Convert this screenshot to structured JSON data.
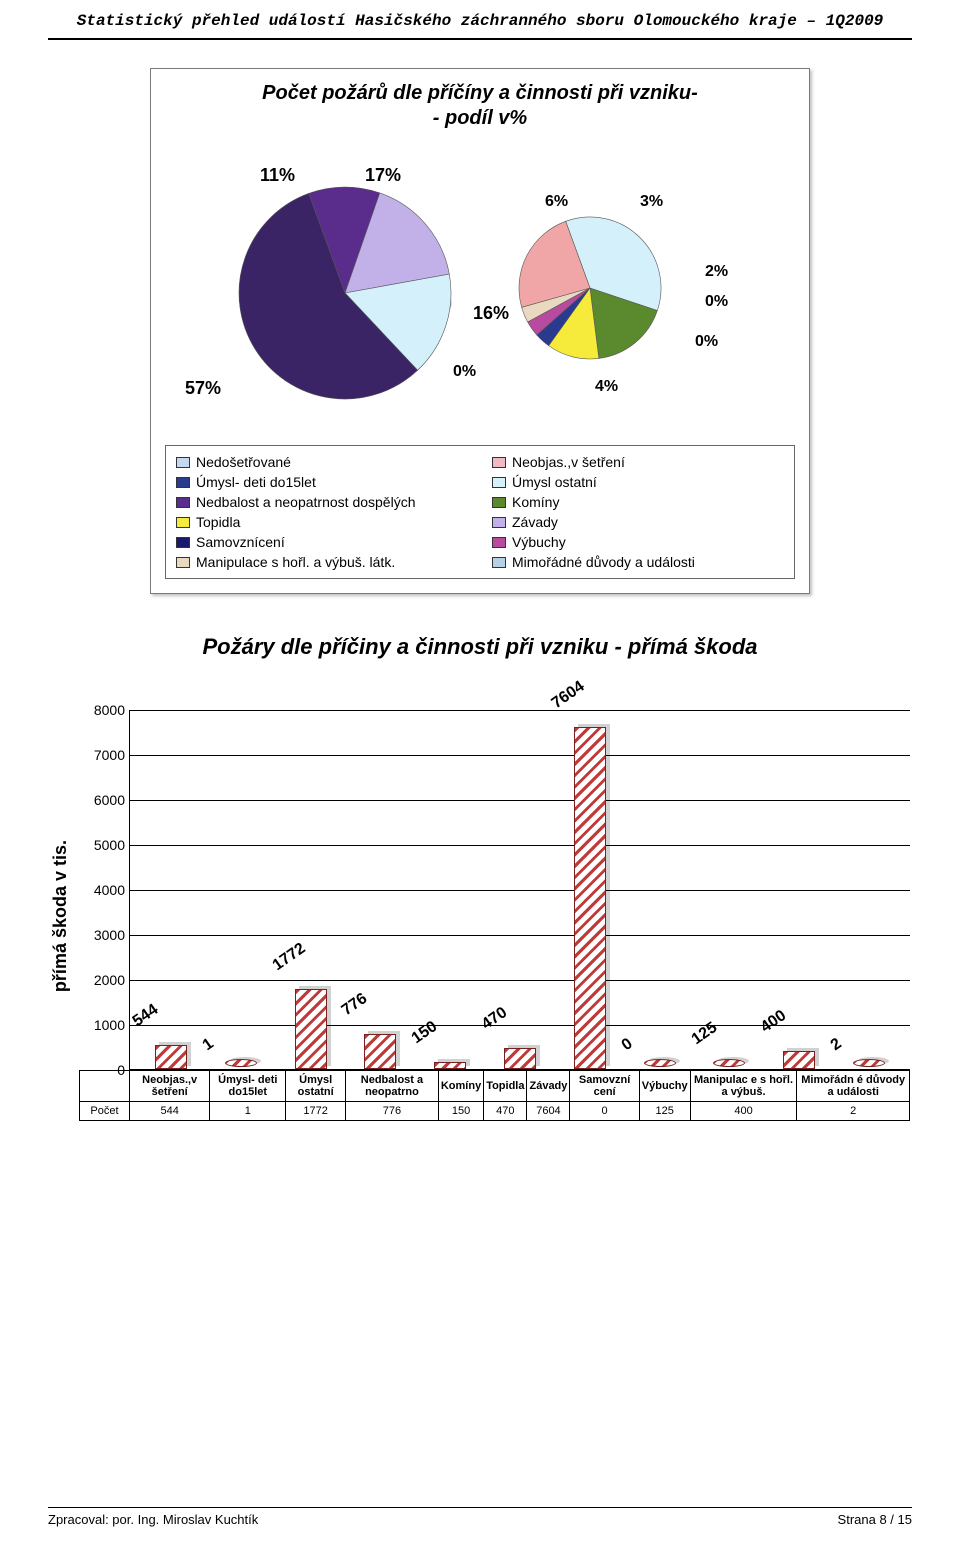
{
  "doc": {
    "title": "Statistický přehled událostí Hasičského záchranného sboru Olomouckého kraje – 1Q2009"
  },
  "pie_chart": {
    "type": "pie",
    "title_line1": "Počet požárů dle příčíny a činnosti při vzniku-",
    "title_line2": "- podíl v%",
    "background_color": "#ffffff",
    "main_pie": {
      "slices": [
        {
          "label": "11%",
          "value": 11,
          "color": "#5a2d8c"
        },
        {
          "label": "17%",
          "value": 17,
          "color": "#c2b0e8"
        },
        {
          "label": "16%",
          "value": 16,
          "color": "#d4f0fb"
        },
        {
          "label": "57%",
          "value": 57,
          "color": "#3a2466"
        }
      ]
    },
    "detail_pie": {
      "slices": [
        {
          "label": "6%",
          "value": 6,
          "color": "#d4f0fb"
        },
        {
          "label": "3%",
          "value": 3,
          "color": "#5b8a2e"
        },
        {
          "label": "2%",
          "value": 2,
          "color": "#f6ea3a"
        },
        {
          "label": "0%",
          "value": 0.6,
          "color": "#2a3a8e"
        },
        {
          "label": "0%",
          "value": 0.6,
          "color": "#b84aa0"
        },
        {
          "label": "0%",
          "value": 0.6,
          "color": "#e8d9c0"
        },
        {
          "label": "4%",
          "value": 4,
          "color": "#f0a6a6"
        }
      ]
    },
    "legend": [
      {
        "label": "Nedošetřované",
        "color": "#c4d8f0"
      },
      {
        "label": "Neobjas.,v šetření",
        "color": "#f2b8c4"
      },
      {
        "label": "Úmysl- deti do15let",
        "color": "#2a3a8e"
      },
      {
        "label": "Úmysl ostatní",
        "color": "#d4f0fb"
      },
      {
        "label": "Nedbalost a neopatrnost dospělých",
        "color": "#5a2d8c"
      },
      {
        "label": "Komíny",
        "color": "#5b8a2e"
      },
      {
        "label": "Topidla",
        "color": "#f6ea3a"
      },
      {
        "label": "Závady",
        "color": "#c2b0e8"
      },
      {
        "label": "Samovznícení",
        "color": "#1a1a6a"
      },
      {
        "label": "Výbuchy",
        "color": "#b84aa0"
      },
      {
        "label": "Manipulace s hořl. a výbuš. látk.",
        "color": "#e8d9c0"
      },
      {
        "label": "Mimořádné důvody a události",
        "color": "#b6d0e8"
      }
    ]
  },
  "bar_chart": {
    "type": "bar",
    "title": "Požáry dle příčiny a činnosti při vzniku - přímá škoda",
    "ylabel": "přímá škoda v tis.",
    "ylim": [
      0,
      8000
    ],
    "ytick_step": 1000,
    "yticks": [
      0,
      1000,
      2000,
      3000,
      4000,
      5000,
      6000,
      7000,
      8000
    ],
    "grid_color": "#000000",
    "background_color": "#ffffff",
    "bar_fill": "#ffffff",
    "bar_hatch": "#c03a3a",
    "categories": [
      "Neobjas.,v šetření",
      "Úmysl- deti do15let",
      "Úmysl ostatní",
      "Nedbalost a neopatrno",
      "Komíny",
      "Topidla",
      "Závady",
      "Samovzní cení",
      "Výbuchy",
      "Manipulac e s hořl. a výbuš.",
      "Mimořádn é důvody a události"
    ],
    "values": [
      544,
      1,
      1772,
      776,
      150,
      470,
      7604,
      0,
      125,
      400,
      2
    ],
    "row_label": "Počet"
  },
  "footer": {
    "left": "Zpracoval:  por. Ing. Miroslav Kuchtík",
    "right": "Strana 8 / 15"
  }
}
